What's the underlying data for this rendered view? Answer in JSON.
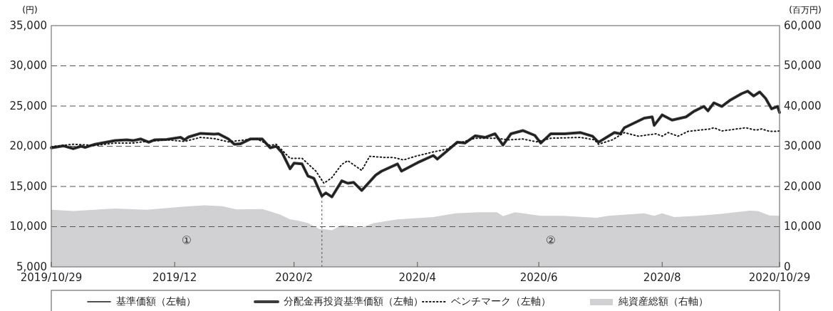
{
  "chart_data": {
    "type": "line",
    "ylabel": "(円)",
    "y2label": "(百万円)",
    "xlim": [
      "2019-10-29",
      "2020-10-29"
    ],
    "xticks": [
      {
        "value": "2019-10-29",
        "label": "2019/10/29"
      },
      {
        "value": "2019-12-30",
        "label": "2019/12"
      },
      {
        "value": "2020-02-28",
        "label": "2020/2"
      },
      {
        "value": "2020-04-30",
        "label": "2020/4"
      },
      {
        "value": "2020-06-30",
        "label": "2020/6"
      },
      {
        "value": "2020-08-31",
        "label": "2020/8"
      },
      {
        "value": "2020-10-29",
        "label": "2020/10/29"
      }
    ],
    "ylim": [
      5000,
      35000
    ],
    "yticks": [
      {
        "value": 5000,
        "label": "5,000"
      },
      {
        "value": 10000,
        "label": "10,000"
      },
      {
        "value": 15000,
        "label": "15,000"
      },
      {
        "value": 20000,
        "label": "20,000"
      },
      {
        "value": 25000,
        "label": "25,000"
      },
      {
        "value": 30000,
        "label": "30,000"
      },
      {
        "value": 35000,
        "label": "35,000"
      }
    ],
    "y2lim": [
      0,
      60000
    ],
    "y2ticks": [
      0,
      {
        "value": 10000,
        "label": "10,000"
      },
      {
        "value": 20000,
        "label": "20,000"
      },
      {
        "value": 30000,
        "label": "30,000"
      },
      {
        "value": 40000,
        "label": "40,000"
      },
      {
        "value": 50000,
        "label": "50,000"
      },
      {
        "value": 60000,
        "label": "60,000"
      }
    ],
    "grid": "y",
    "legend": "bottom",
    "ref_lines": [
      {
        "axis": "x",
        "value": "2020-03-13",
        "color": "#555555",
        "line_style": "dashed"
      }
    ],
    "annotations": [
      "①",
      "②"
    ],
    "series": [
      {
        "name": "純資産総額（右軸）",
        "type": "area",
        "axis": "y2",
        "color": "#d1d1d3",
        "x": [
          "2019-10-29",
          "2019-11-09",
          "2019-11-30",
          "2019-12-16",
          "2020-01-04",
          "2020-01-14",
          "2020-01-23",
          "2020-01-30",
          "2020-02-12",
          "2020-02-16",
          "2020-02-21",
          "2020-02-26",
          "2020-03-01",
          "2020-03-06",
          "2020-03-12",
          "2020-03-14",
          "2020-03-18",
          "2020-03-23",
          "2020-04-02",
          "2020-04-08",
          "2020-04-20",
          "2020-05-08",
          "2020-05-19",
          "2020-05-31",
          "2020-06-09",
          "2020-06-12",
          "2020-06-18",
          "2020-07-01",
          "2020-07-12",
          "2020-07-29",
          "2020-08-04",
          "2020-08-22",
          "2020-08-27",
          "2020-08-31",
          "2020-09-06",
          "2020-09-18",
          "2020-10-02",
          "2020-10-14",
          "2020-10-18",
          "2020-10-24",
          "2020-10-29"
        ],
        "values": [
          14200,
          13900,
          14500,
          14200,
          15000,
          15300,
          15100,
          14300,
          14400,
          13800,
          13000,
          11800,
          11500,
          10900,
          9400,
          9400,
          9100,
          10400,
          9800,
          10900,
          11800,
          12400,
          13300,
          13600,
          13600,
          12600,
          13600,
          12700,
          12700,
          12200,
          12700,
          13300,
          12700,
          13300,
          12400,
          12700,
          13300,
          14000,
          13900,
          12800,
          12700
        ]
      },
      {
        "name": "分配金再投資基準価額（左軸）",
        "color": "#3c3c3c",
        "line_style": "solid",
        "x": [
          "2019-10-29",
          "2019-11-04",
          "2019-11-09",
          "2019-11-13",
          "2019-11-15",
          "2019-11-20",
          "2019-11-30",
          "2019-12-06",
          "2019-12-09",
          "2019-12-13",
          "2019-12-17",
          "2019-12-20",
          "2019-12-26",
          "2020-01-02",
          "2020-01-04",
          "2020-01-06",
          "2020-01-12",
          "2020-01-19",
          "2020-01-21",
          "2020-01-26",
          "2020-01-29",
          "2020-02-01",
          "2020-02-06",
          "2020-02-12",
          "2020-02-16",
          "2020-02-19",
          "2020-02-22",
          "2020-02-26",
          "2020-02-28",
          "2020-03-03",
          "2020-03-06",
          "2020-03-09",
          "2020-03-13",
          "2020-03-15",
          "2020-03-18",
          "2020-03-23",
          "2020-03-26",
          "2020-03-29",
          "2020-04-02",
          "2020-04-09",
          "2020-04-12",
          "2020-04-20",
          "2020-04-22",
          "2020-04-30",
          "2020-05-08",
          "2020-05-10",
          "2020-05-16",
          "2020-05-20",
          "2020-05-24",
          "2020-05-29",
          "2020-06-03",
          "2020-06-08",
          "2020-06-12",
          "2020-06-16",
          "2020-06-22",
          "2020-06-28",
          "2020-07-01",
          "2020-07-06",
          "2020-07-13",
          "2020-07-21",
          "2020-07-27",
          "2020-07-30",
          "2020-08-07",
          "2020-08-10",
          "2020-08-12",
          "2020-08-17",
          "2020-08-22",
          "2020-08-26",
          "2020-08-27",
          "2020-08-31",
          "2020-09-05",
          "2020-09-12",
          "2020-09-16",
          "2020-09-21",
          "2020-09-23",
          "2020-09-26",
          "2020-09-30",
          "2020-10-04",
          "2020-10-10",
          "2020-10-13",
          "2020-10-16",
          "2020-10-19",
          "2020-10-22",
          "2020-10-25",
          "2020-10-28",
          "2020-10-29"
        ],
        "values": [
          19800,
          20050,
          19700,
          20000,
          19850,
          20250,
          20700,
          20800,
          20700,
          20900,
          20500,
          20800,
          20850,
          21100,
          20800,
          21150,
          21600,
          21500,
          21550,
          20900,
          20250,
          20300,
          20900,
          20900,
          19800,
          20000,
          19200,
          17200,
          17900,
          17800,
          16300,
          16000,
          13800,
          14200,
          13700,
          15700,
          15400,
          15500,
          14500,
          16400,
          16900,
          17800,
          16900,
          17950,
          18850,
          18400,
          19650,
          20500,
          20400,
          21300,
          21100,
          21550,
          20150,
          21550,
          21950,
          21350,
          20400,
          21550,
          21550,
          21700,
          21250,
          20500,
          21700,
          21550,
          22300,
          22900,
          23500,
          23650,
          22600,
          23900,
          23250,
          23650,
          24350,
          24950,
          24400,
          25400,
          24950,
          25700,
          26550,
          26850,
          26250,
          26750,
          25950,
          24650,
          24950,
          24200
        ]
      },
      {
        "name": "基準価額（左軸）",
        "color": "#1a1a1a",
        "line_style": "solid",
        "x": [
          "2019-10-29",
          "2019-11-04",
          "2019-11-09",
          "2019-11-13",
          "2019-11-15",
          "2019-11-20",
          "2019-11-30",
          "2019-12-06",
          "2019-12-09",
          "2019-12-13",
          "2019-12-17",
          "2019-12-20",
          "2019-12-26",
          "2020-01-02",
          "2020-01-04",
          "2020-01-06",
          "2020-01-12",
          "2020-01-19",
          "2020-01-21",
          "2020-01-26",
          "2020-01-29",
          "2020-02-01",
          "2020-02-06",
          "2020-02-12",
          "2020-02-16",
          "2020-02-19",
          "2020-02-22",
          "2020-02-26",
          "2020-02-28",
          "2020-03-03",
          "2020-03-06",
          "2020-03-09",
          "2020-03-13",
          "2020-03-15",
          "2020-03-18",
          "2020-03-23",
          "2020-03-26",
          "2020-03-29",
          "2020-04-02",
          "2020-04-09",
          "2020-04-12",
          "2020-04-20",
          "2020-04-22",
          "2020-04-30",
          "2020-05-08",
          "2020-05-10",
          "2020-05-16",
          "2020-05-20",
          "2020-05-24",
          "2020-05-29",
          "2020-06-03",
          "2020-06-08",
          "2020-06-12",
          "2020-06-16",
          "2020-06-22",
          "2020-06-28",
          "2020-07-01",
          "2020-07-06",
          "2020-07-13",
          "2020-07-21",
          "2020-07-27",
          "2020-07-30",
          "2020-08-07",
          "2020-08-10",
          "2020-08-12",
          "2020-08-17",
          "2020-08-22",
          "2020-08-26",
          "2020-08-27",
          "2020-08-31",
          "2020-09-05",
          "2020-09-12",
          "2020-09-16",
          "2020-09-21",
          "2020-09-23",
          "2020-09-26",
          "2020-09-30",
          "2020-10-04",
          "2020-10-10",
          "2020-10-13",
          "2020-10-16",
          "2020-10-19",
          "2020-10-22",
          "2020-10-25",
          "2020-10-28",
          "2020-10-29"
        ],
        "values": [
          19800,
          20050,
          19700,
          20000,
          19850,
          20250,
          20700,
          20800,
          20700,
          20900,
          20500,
          20800,
          20850,
          21100,
          20800,
          21150,
          21600,
          21500,
          21550,
          20900,
          20250,
          20300,
          20900,
          20900,
          19800,
          20000,
          19200,
          17200,
          17900,
          17800,
          16300,
          16000,
          13800,
          14200,
          13700,
          15700,
          15400,
          15500,
          14500,
          16400,
          16900,
          17800,
          16900,
          17950,
          18850,
          18400,
          19650,
          20500,
          20400,
          21300,
          21100,
          21550,
          20150,
          21550,
          21950,
          21350,
          20400,
          21550,
          21550,
          21700,
          21250,
          20500,
          21700,
          21550,
          22300,
          22900,
          23500,
          23650,
          22600,
          23900,
          23250,
          23650,
          24350,
          24950,
          24400,
          25400,
          24950,
          25700,
          26550,
          26850,
          26250,
          26750,
          25950,
          24650,
          24950,
          24200
        ]
      },
      {
        "name": "ベンチマーク（左軸）",
        "color": "#1a1a1a",
        "line_style": "dotted",
        "x": [
          "2019-10-29",
          "2019-11-09",
          "2019-11-20",
          "2019-11-30",
          "2019-12-09",
          "2019-12-14",
          "2019-12-26",
          "2020-01-04",
          "2020-01-12",
          "2020-01-19",
          "2020-01-26",
          "2020-02-09",
          "2020-02-16",
          "2020-02-19",
          "2020-02-26",
          "2020-03-03",
          "2020-03-10",
          "2020-03-14",
          "2020-03-18",
          "2020-03-23",
          "2020-03-26",
          "2020-04-02",
          "2020-04-06",
          "2020-04-14",
          "2020-04-18",
          "2020-04-23",
          "2020-04-29",
          "2020-05-04",
          "2020-05-08",
          "2020-05-15",
          "2020-05-19",
          "2020-05-29",
          "2020-06-08",
          "2020-06-15",
          "2020-06-22",
          "2020-06-29",
          "2020-07-06",
          "2020-07-21",
          "2020-07-28",
          "2020-07-30",
          "2020-08-06",
          "2020-08-12",
          "2020-08-19",
          "2020-08-28",
          "2020-08-31",
          "2020-09-03",
          "2020-09-08",
          "2020-09-13",
          "2020-09-24",
          "2020-09-26",
          "2020-09-30",
          "2020-10-12",
          "2020-10-17",
          "2020-10-20",
          "2020-10-24",
          "2020-10-27",
          "2020-10-29"
        ],
        "values": [
          19950,
          20250,
          20100,
          20400,
          20400,
          20550,
          20800,
          20600,
          21100,
          20950,
          20550,
          20950,
          20100,
          20250,
          18500,
          18500,
          16900,
          15400,
          16100,
          17750,
          18200,
          17000,
          18750,
          18600,
          18600,
          18300,
          18750,
          19050,
          19300,
          19650,
          20250,
          21000,
          21000,
          20800,
          20900,
          20550,
          21000,
          21100,
          20800,
          20250,
          20800,
          21700,
          21250,
          21550,
          21250,
          21700,
          21250,
          21850,
          22150,
          22300,
          21900,
          22300,
          22000,
          22150,
          21850,
          21850,
          21900
        ]
      }
    ]
  }
}
